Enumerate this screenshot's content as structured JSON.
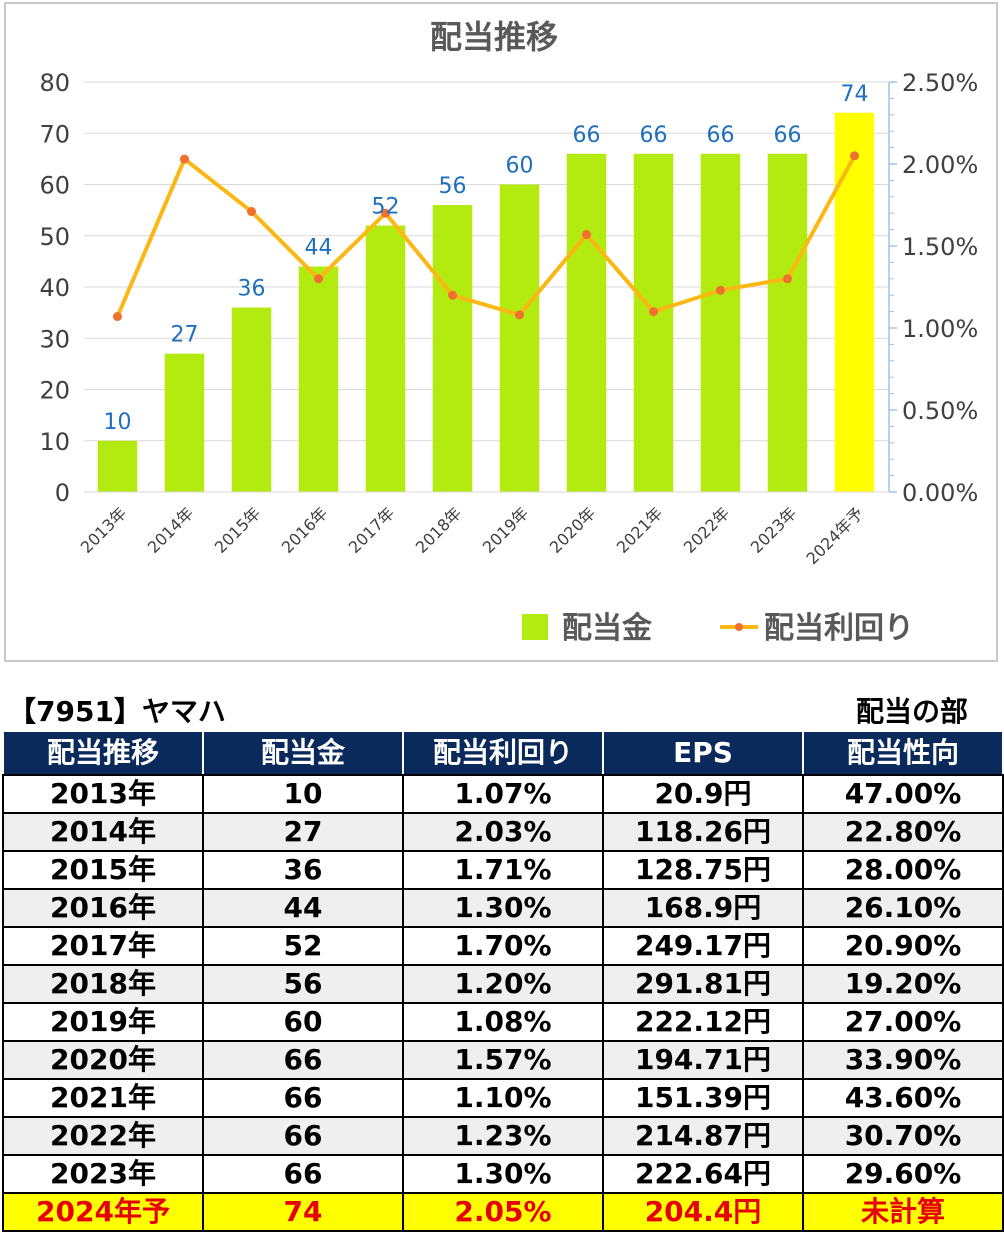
{
  "chart_data": {
    "type": "bar",
    "title": "配当推移",
    "categories": [
      "2013年",
      "2014年",
      "2015年",
      "2016年",
      "2017年",
      "2018年",
      "2019年",
      "2020年",
      "2021年",
      "2022年",
      "2023年",
      "2024年予"
    ],
    "series": [
      {
        "name": "配当金",
        "type": "bar",
        "axis": "left",
        "values": [
          10,
          27,
          36,
          44,
          52,
          56,
          60,
          66,
          66,
          66,
          66,
          74
        ],
        "color": "#b3ea0f",
        "highlight_color": "#ffff00",
        "highlight_index": 11
      },
      {
        "name": "配当利回り",
        "type": "line",
        "axis": "right",
        "values": [
          1.07,
          2.03,
          1.71,
          1.3,
          1.7,
          1.2,
          1.08,
          1.57,
          1.1,
          1.23,
          1.3,
          2.05
        ],
        "color": "#fbb714",
        "marker_color": "#f07030"
      }
    ],
    "y_left": {
      "min": 0,
      "max": 80,
      "ticks": [
        "0",
        "10",
        "20",
        "30",
        "40",
        "50",
        "60",
        "70",
        "80"
      ]
    },
    "y_right": {
      "min": 0,
      "max": 2.5,
      "ticks": [
        "0.00%",
        "0.50%",
        "1.00%",
        "1.50%",
        "2.00%",
        "2.50%"
      ]
    },
    "data_label_color": "#1f6fbf",
    "legend_position": "bottom-right",
    "grid": true
  },
  "table": {
    "title": "【7951】ヤマハ",
    "section": "配当の部",
    "headers": [
      "配当推移",
      "配当金",
      "配当利回り",
      "EPS",
      "配当性向"
    ],
    "rows": [
      [
        "2013年",
        "10",
        "1.07%",
        "20.9円",
        "47.00%"
      ],
      [
        "2014年",
        "27",
        "2.03%",
        "118.26円",
        "22.80%"
      ],
      [
        "2015年",
        "36",
        "1.71%",
        "128.75円",
        "28.00%"
      ],
      [
        "2016年",
        "44",
        "1.30%",
        "168.9円",
        "26.10%"
      ],
      [
        "2017年",
        "52",
        "1.70%",
        "249.17円",
        "20.90%"
      ],
      [
        "2018年",
        "56",
        "1.20%",
        "291.81円",
        "19.20%"
      ],
      [
        "2019年",
        "60",
        "1.08%",
        "222.12円",
        "27.00%"
      ],
      [
        "2020年",
        "66",
        "1.57%",
        "194.71円",
        "33.90%"
      ],
      [
        "2021年",
        "66",
        "1.10%",
        "151.39円",
        "43.60%"
      ],
      [
        "2022年",
        "66",
        "1.23%",
        "214.87円",
        "30.70%"
      ],
      [
        "2023年",
        "66",
        "1.30%",
        "222.64円",
        "29.60%"
      ],
      [
        "2024年予",
        "74",
        "2.05%",
        "204.4円",
        "未計算"
      ]
    ],
    "forecast_row_index": 11
  }
}
